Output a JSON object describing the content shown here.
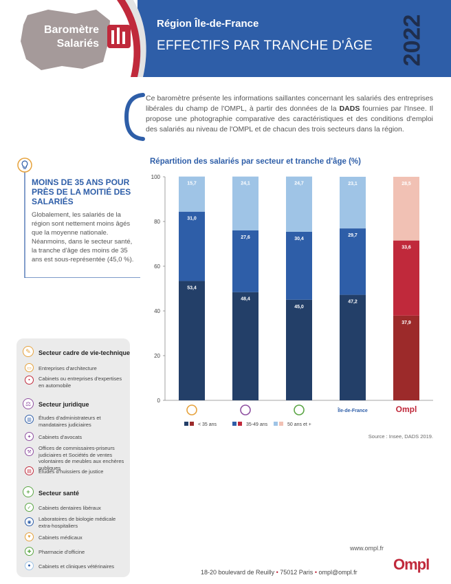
{
  "header": {
    "badge_line1": "Baromètre",
    "badge_line2": "Salariés",
    "region": "Région Île-de-France",
    "title": "EFFECTIFS PAR TRANCHE D'ÂGE",
    "year": "2022"
  },
  "intro": {
    "part1": "Ce baromètre présente les informations saillantes concernant les salariés des entreprises libérales du champ de l'OMPL, à partir des données de la ",
    "bold": "DADS",
    "part2": " fournies par l'Insee. Il propose une photographie comparative des caractéristiques et des conditions d'emploi des salariés au niveau de l'OMPL et de chacun des trois secteurs dans la région."
  },
  "callout": {
    "title": "MOINS DE 35 ANS POUR PRÈS DE LA MOITIÉ DES SALARIÉS",
    "body": "Globalement, les salariés de la région sont nettement moins âgés que la moyenne nationale. Néanmoins, dans le secteur santé, la tranche d'âge des moins de 35 ans est sous-représentée (45,0 %)."
  },
  "colors": {
    "primary_blue": "#2e5ea8",
    "dark_blue": "#233f68",
    "mid_blue": "#2e5ea8",
    "light_blue": "#9fc4e6",
    "ompl_dark": "#9c2a2a",
    "ompl_mid": "#c0293b",
    "ompl_light": "#f1c1b4",
    "sector_orange": "#e6a23c",
    "sector_purple": "#8e4fa0",
    "sector_green": "#5aa544",
    "ompl_red": "#c0293b"
  },
  "chart_data": {
    "type": "bar",
    "stacked": true,
    "title": "Répartition des salariés par secteur et tranche d'âge (%)",
    "categories": [
      "Secteur cadre de vie-technique",
      "Secteur juridique",
      "Secteur santé",
      "Île-de-France",
      "Ompl"
    ],
    "category_labels": [
      "",
      "",
      "",
      "Île-de-France",
      "Ompl"
    ],
    "category_icons": [
      "cadre-de-vie-icon",
      "juridique-icon",
      "sante-icon",
      "",
      ""
    ],
    "series": [
      {
        "name": "< 35 ans",
        "values": [
          53.4,
          48.4,
          45.0,
          47.2,
          37.9
        ],
        "labels": [
          "53,4",
          "48,4",
          "45,0",
          "47,2",
          "37,9"
        ]
      },
      {
        "name": "35-49 ans",
        "values": [
          31.0,
          27.6,
          30.4,
          29.7,
          33.6
        ],
        "labels": [
          "31,0",
          "27,6",
          "30,4",
          "29,7",
          "33,6"
        ]
      },
      {
        "name": "50 ans et +",
        "values": [
          15.7,
          24.1,
          24.7,
          23.1,
          28.5
        ],
        "labels": [
          "15,7",
          "24,1",
          "24,7",
          "23,1",
          "28,5"
        ]
      }
    ],
    "yticks": [
      "0",
      "20",
      "40",
      "60",
      "80",
      "100"
    ],
    "ylim": [
      0,
      100
    ],
    "grid": false,
    "legend_position": "bottom",
    "source": "Source : Insee, DADS 2019."
  },
  "sectors": [
    {
      "title": "Secteur cadre de vie-technique",
      "icon": "compass-icon",
      "items": [
        {
          "label": "Entreprises d'architecture",
          "icon": "ruler-icon"
        },
        {
          "label": "Cabinets ou entreprises d'expertises en automobile",
          "icon": "car-icon"
        }
      ]
    },
    {
      "title": "Secteur juridique",
      "icon": "scales-icon",
      "items": [
        {
          "label": "Études d'administrateurs et mandataires judiciaires",
          "icon": "building-icon"
        },
        {
          "label": "Cabinets d'avocats",
          "icon": "gavel-icon"
        },
        {
          "label": "Offices de commissaires-priseurs judiciaires et Sociétés de ventes volontaires de meubles aux enchères publiques",
          "icon": "hammer-icon"
        },
        {
          "label": "Études d'huissiers de justice",
          "icon": "document-icon"
        }
      ]
    },
    {
      "title": "Secteur santé",
      "icon": "cross-icon",
      "items": [
        {
          "label": "Cabinets dentaires libéraux",
          "icon": "tooth-icon"
        },
        {
          "label": "Laboratoires de biologie médicale extra-hospitaliers",
          "icon": "microscope-icon"
        },
        {
          "label": "Cabinets médicaux",
          "icon": "stethoscope-icon"
        },
        {
          "label": "Pharmacie d'officine",
          "icon": "pharmacy-icon"
        },
        {
          "label": "Cabinets et cliniques vétérinaires",
          "icon": "paw-icon"
        }
      ]
    }
  ],
  "footer": {
    "website": "www.ompl.fr",
    "address": "18-20 boulevard de Reuilly",
    "city": "75012 Paris",
    "email": "ompl@ompl.fr",
    "logo": "Ompl"
  }
}
